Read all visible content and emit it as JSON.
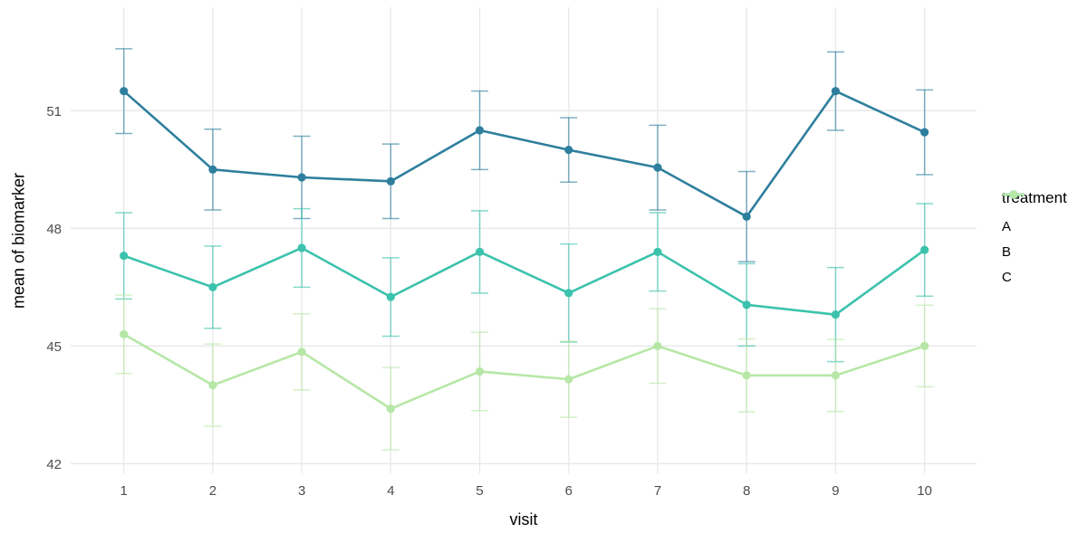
{
  "figure": {
    "background": "#ffffff",
    "grid_color": "#e8e8e8",
    "tick_label_color": "#4d4d4d"
  },
  "legend": {
    "title": "treatment",
    "items": [
      {
        "label": "A",
        "color": "#2e7f9d"
      },
      {
        "label": "B",
        "color": "#3cc2ad"
      },
      {
        "label": "C",
        "color": "#b6e7a6"
      }
    ]
  },
  "chart_data": {
    "type": "line",
    "title": "",
    "xlabel": "visit",
    "ylabel": "mean of biomarker",
    "x": [
      1,
      2,
      3,
      4,
      5,
      6,
      7,
      8,
      9,
      10
    ],
    "xticks": [
      "1",
      "2",
      "3",
      "4",
      "5",
      "6",
      "7",
      "8",
      "9",
      "10"
    ],
    "yticks": [
      42,
      45,
      48,
      51
    ],
    "ylim": [
      41.0,
      53.0
    ],
    "grid": true,
    "legend_position": "right",
    "error_bars": true,
    "series": [
      {
        "name": "A",
        "color": "#2e7f9d",
        "values": [
          51.5,
          49.5,
          49.3,
          49.2,
          50.5,
          50.0,
          49.55,
          48.3,
          51.5,
          50.45
        ],
        "errors": [
          1.08,
          1.03,
          1.05,
          0.95,
          1.0,
          0.82,
          1.08,
          1.15,
          1.0,
          1.08
        ]
      },
      {
        "name": "B",
        "color": "#3cc2ad",
        "values": [
          47.3,
          46.5,
          47.5,
          46.25,
          47.4,
          46.35,
          47.4,
          46.05,
          45.8,
          47.45
        ],
        "errors": [
          1.1,
          1.05,
          1.0,
          1.0,
          1.05,
          1.25,
          1.0,
          1.05,
          1.2,
          1.18
        ]
      },
      {
        "name": "C",
        "color": "#b6e7a6",
        "values": [
          45.3,
          44.0,
          44.85,
          43.4,
          44.35,
          44.15,
          45.0,
          44.25,
          44.25,
          45.0
        ],
        "errors": [
          1.0,
          1.05,
          0.97,
          1.05,
          1.0,
          0.97,
          0.95,
          0.93,
          0.92,
          1.04
        ]
      }
    ]
  }
}
